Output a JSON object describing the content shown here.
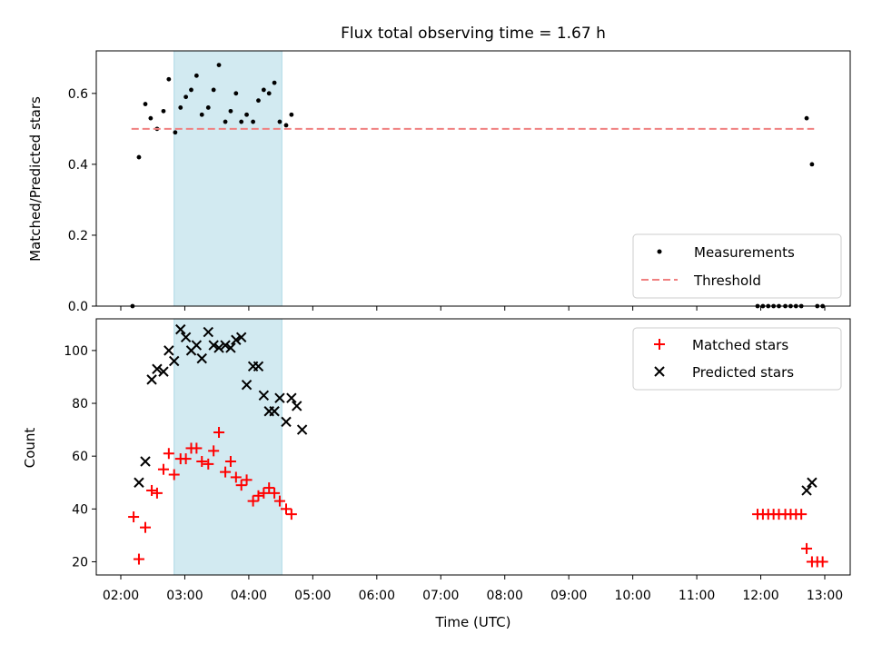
{
  "chart_data": [
    {
      "type": "scatter",
      "title": "Flux total observing time = 1.67 h",
      "xlabel": "",
      "ylabel": "Matched/Predicted stars",
      "xlim": [
        "02:00",
        "13:00"
      ],
      "ylim": [
        0,
        0.72
      ],
      "yticks": [
        0.0,
        0.2,
        0.4,
        0.6
      ],
      "ytick_labels": [
        "0.0",
        "0.2",
        "0.4",
        "0.6"
      ],
      "shaded_span": {
        "x_start": "02:50",
        "x_end": "04:31",
        "color": "#add8e6"
      },
      "legend": {
        "placement": "lower right"
      },
      "series": [
        {
          "name": "Measurements",
          "marker": "dot",
          "color": "#000000",
          "points": [
            [
              "02:11",
              0.0
            ],
            [
              "02:17",
              0.42
            ],
            [
              "02:23",
              0.57
            ],
            [
              "02:28",
              0.53
            ],
            [
              "02:34",
              0.5
            ],
            [
              "02:40",
              0.55
            ],
            [
              "02:45",
              0.64
            ],
            [
              "02:51",
              0.49
            ],
            [
              "02:56",
              0.56
            ],
            [
              "03:01",
              0.59
            ],
            [
              "03:06",
              0.61
            ],
            [
              "03:11",
              0.65
            ],
            [
              "03:16",
              0.54
            ],
            [
              "03:22",
              0.56
            ],
            [
              "03:27",
              0.61
            ],
            [
              "03:32",
              0.68
            ],
            [
              "03:38",
              0.52
            ],
            [
              "03:43",
              0.55
            ],
            [
              "03:48",
              0.6
            ],
            [
              "03:53",
              0.52
            ],
            [
              "03:58",
              0.54
            ],
            [
              "04:04",
              0.52
            ],
            [
              "04:09",
              0.58
            ],
            [
              "04:14",
              0.61
            ],
            [
              "04:19",
              0.6
            ],
            [
              "04:24",
              0.63
            ],
            [
              "04:29",
              0.52
            ],
            [
              "04:35",
              0.51
            ],
            [
              "04:40",
              0.54
            ],
            [
              "11:57",
              0.0
            ],
            [
              "12:02",
              0.0
            ],
            [
              "12:07",
              0.0
            ],
            [
              "12:12",
              0.0
            ],
            [
              "12:17",
              0.0
            ],
            [
              "12:23",
              0.0
            ],
            [
              "12:28",
              0.0
            ],
            [
              "12:33",
              0.0
            ],
            [
              "12:38",
              0.0
            ],
            [
              "12:43",
              0.53
            ],
            [
              "12:48",
              0.4
            ],
            [
              "12:53",
              0.0
            ],
            [
              "12:58",
              0.0
            ]
          ]
        },
        {
          "name": "Threshold",
          "marker": "dashed-line",
          "color": "#f08080",
          "points": [
            [
              "02:10",
              0.5
            ],
            [
              "12:50",
              0.5
            ]
          ]
        }
      ]
    },
    {
      "type": "scatter",
      "title": "",
      "xlabel": "Time (UTC)",
      "ylabel": "Count",
      "xlim": [
        "02:00",
        "13:00"
      ],
      "ylim": [
        15,
        112
      ],
      "xticks": [
        "02:00",
        "03:00",
        "04:00",
        "05:00",
        "06:00",
        "07:00",
        "08:00",
        "09:00",
        "10:00",
        "11:00",
        "12:00",
        "13:00"
      ],
      "yticks": [
        20,
        40,
        60,
        80,
        100
      ],
      "ytick_labels": [
        "20",
        "40",
        "60",
        "80",
        "100"
      ],
      "shaded_span": {
        "x_start": "02:50",
        "x_end": "04:31",
        "color": "#add8e6"
      },
      "legend": {
        "placement": "upper right"
      },
      "series": [
        {
          "name": "Matched stars",
          "marker": "plus",
          "color": "#ff0000",
          "points": [
            [
              "02:12",
              37
            ],
            [
              "02:17",
              21
            ],
            [
              "02:23",
              33
            ],
            [
              "02:29",
              47
            ],
            [
              "02:34",
              46
            ],
            [
              "02:40",
              55
            ],
            [
              "02:45",
              61
            ],
            [
              "02:50",
              53
            ],
            [
              "02:56",
              59
            ],
            [
              "03:01",
              59
            ],
            [
              "03:06",
              63
            ],
            [
              "03:11",
              63
            ],
            [
              "03:16",
              58
            ],
            [
              "03:22",
              57
            ],
            [
              "03:27",
              62
            ],
            [
              "03:32",
              69
            ],
            [
              "03:38",
              54
            ],
            [
              "03:43",
              58
            ],
            [
              "03:48",
              52
            ],
            [
              "03:53",
              49
            ],
            [
              "03:58",
              51
            ],
            [
              "04:04",
              43
            ],
            [
              "04:09",
              45
            ],
            [
              "04:14",
              46
            ],
            [
              "04:19",
              48
            ],
            [
              "04:24",
              46
            ],
            [
              "04:29",
              43
            ],
            [
              "04:35",
              40
            ],
            [
              "04:40",
              38
            ],
            [
              "11:57",
              38
            ],
            [
              "12:02",
              38
            ],
            [
              "12:07",
              38
            ],
            [
              "12:12",
              38
            ],
            [
              "12:17",
              38
            ],
            [
              "12:23",
              38
            ],
            [
              "12:28",
              38
            ],
            [
              "12:33",
              38
            ],
            [
              "12:38",
              38
            ],
            [
              "12:43",
              25
            ],
            [
              "12:48",
              20
            ],
            [
              "12:53",
              20
            ],
            [
              "12:58",
              20
            ]
          ]
        },
        {
          "name": "Predicted stars",
          "marker": "x",
          "color": "#000000",
          "points": [
            [
              "02:17",
              50
            ],
            [
              "02:23",
              58
            ],
            [
              "02:29",
              89
            ],
            [
              "02:34",
              93
            ],
            [
              "02:40",
              92
            ],
            [
              "02:45",
              100
            ],
            [
              "02:50",
              96
            ],
            [
              "02:56",
              108
            ],
            [
              "03:01",
              105
            ],
            [
              "03:06",
              100
            ],
            [
              "03:11",
              102
            ],
            [
              "03:16",
              97
            ],
            [
              "03:22",
              107
            ],
            [
              "03:27",
              102
            ],
            [
              "03:32",
              101
            ],
            [
              "03:38",
              102
            ],
            [
              "03:43",
              101
            ],
            [
              "03:48",
              104
            ],
            [
              "03:53",
              105
            ],
            [
              "03:58",
              87
            ],
            [
              "04:04",
              94
            ],
            [
              "04:09",
              94
            ],
            [
              "04:14",
              83
            ],
            [
              "04:19",
              77
            ],
            [
              "04:24",
              77
            ],
            [
              "04:29",
              82
            ],
            [
              "04:35",
              73
            ],
            [
              "04:40",
              82
            ],
            [
              "04:45",
              79
            ],
            [
              "04:50",
              70
            ],
            [
              "12:43",
              47
            ],
            [
              "12:48",
              50
            ]
          ]
        }
      ]
    }
  ]
}
